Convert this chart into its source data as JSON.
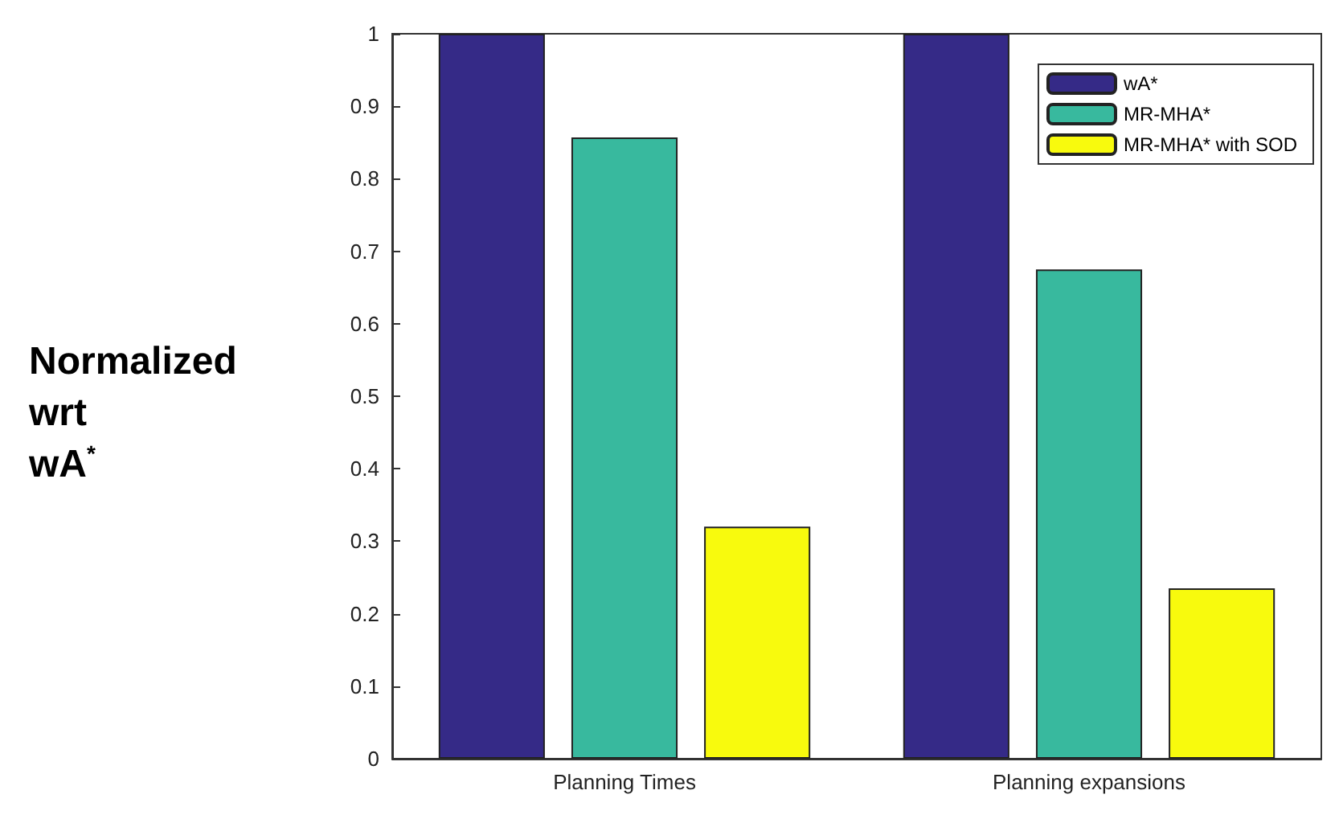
{
  "chart_data": {
    "type": "bar",
    "ylabel": "Normalized\nwrt\nwA$^{*}$",
    "categories": [
      "Planning Times",
      "Planning expansions"
    ],
    "series": [
      {
        "name": "wA*",
        "color": "#352a87",
        "values": [
          1,
          1
        ]
      },
      {
        "name": "MR-MHA*",
        "color": "#38b99e",
        "values": [
          0.857,
          0.675
        ]
      },
      {
        "name": "MR-MHA* with SOD",
        "color": "#f8fa0d",
        "values": [
          0.32,
          0.235
        ]
      }
    ],
    "ylim": [
      0,
      1
    ],
    "yticks": [
      0,
      0.1,
      0.2,
      0.3,
      0.4,
      0.5,
      0.6,
      0.7,
      0.8,
      0.9,
      1
    ],
    "grid": false,
    "legend": "top right"
  }
}
